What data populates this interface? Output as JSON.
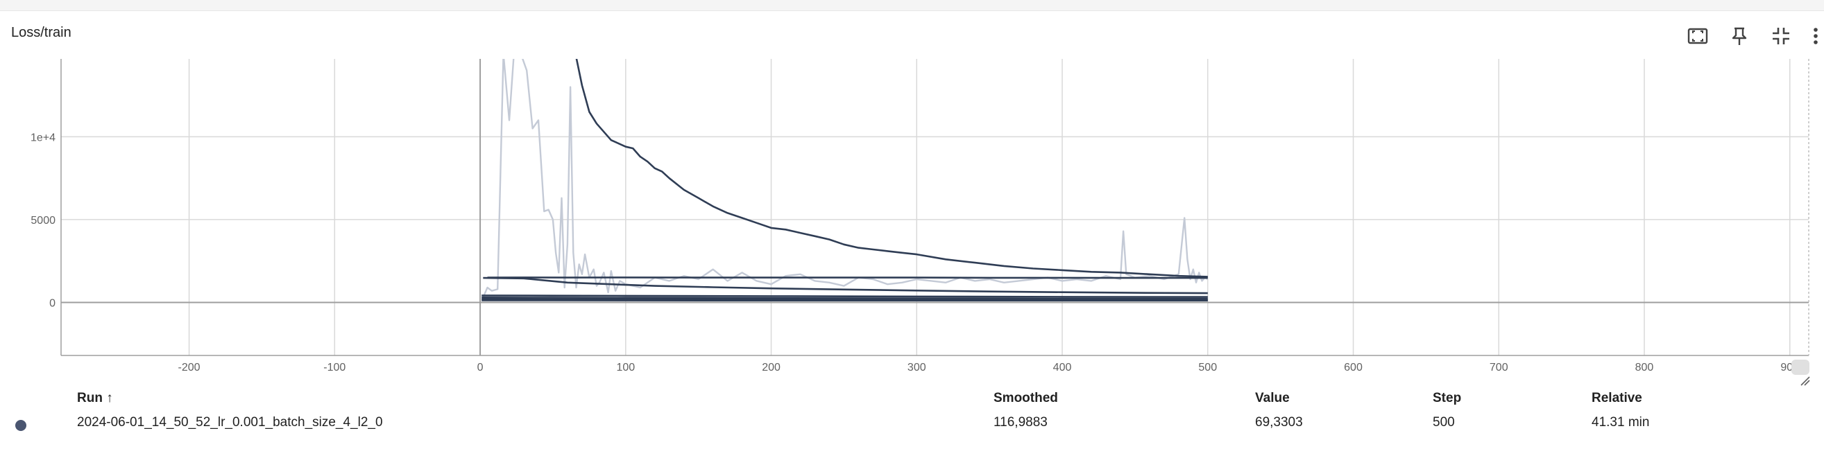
{
  "card": {
    "title": "Loss/train"
  },
  "toolbar": {
    "icons": [
      "fit-domain-icon",
      "pin-icon",
      "collapse-icon",
      "more-vert-icon"
    ]
  },
  "colors": {
    "smoothed": "#2f3d55",
    "raw": "#c4cad6",
    "grid": "#d9d9d9",
    "zero_axis": "#9e9e9e",
    "run_dot": "#4a5570"
  },
  "chart_data": {
    "type": "line",
    "title": "Loss/train",
    "xlabel": "",
    "ylabel": "",
    "xlim": [
      -288,
      913
    ],
    "ylim": [
      -3200,
      14700
    ],
    "x_ticks": [
      -200,
      -100,
      0,
      100,
      200,
      300,
      400,
      500,
      600,
      700,
      800,
      900
    ],
    "x_tick_labels": [
      "-200",
      "-100",
      "0",
      "100",
      "200",
      "300",
      "400",
      "500",
      "600",
      "700",
      "800",
      "900"
    ],
    "y_ticks": [
      0,
      5000,
      10000
    ],
    "y_tick_labels": [
      "0",
      "5000",
      "1e+4"
    ],
    "grid": true,
    "series": [
      {
        "name": "2024-06-01_14_50_52_lr_0.001_batch_size_4_l2_0",
        "kind": "raw",
        "x": [
          2,
          5,
          8,
          12,
          16,
          20,
          24,
          28,
          32,
          36,
          40,
          44,
          47,
          50,
          52,
          54,
          56,
          58,
          60,
          62,
          64,
          66,
          68,
          70,
          72,
          75,
          78,
          80,
          82,
          85,
          88,
          90,
          93,
          96,
          100,
          105,
          110,
          120,
          130,
          140,
          150,
          160,
          170,
          180,
          190,
          200,
          210,
          220,
          230,
          240,
          250,
          260,
          270,
          280,
          290,
          300,
          310,
          320,
          330,
          340,
          350,
          360,
          370,
          380,
          390,
          400,
          410,
          420,
          430,
          440,
          442,
          444,
          450,
          460,
          470,
          480,
          484,
          486,
          488,
          490,
          492,
          494,
          496,
          498,
          500
        ],
        "y": [
          300,
          900,
          700,
          800,
          15000,
          11000,
          16000,
          15000,
          14000,
          10500,
          11000,
          5500,
          5600,
          5000,
          3000,
          1800,
          6300,
          900,
          3500,
          13000,
          3000,
          900,
          2300,
          1700,
          2900,
          1500,
          2000,
          1000,
          1200,
          1800,
          600,
          1900,
          700,
          1300,
          1100,
          1000,
          900,
          1500,
          1300,
          1600,
          1400,
          2000,
          1300,
          1800,
          1300,
          1100,
          1600,
          1700,
          1300,
          1200,
          1000,
          1500,
          1400,
          1100,
          1200,
          1400,
          1300,
          1200,
          1500,
          1300,
          1400,
          1200,
          1300,
          1400,
          1500,
          1300,
          1400,
          1300,
          1600,
          1400,
          4300,
          1700,
          1500,
          1600,
          1400,
          1700,
          5100,
          2600,
          1400,
          2000,
          1200,
          1800,
          1300,
          1500,
          1400
        ]
      },
      {
        "name": "2024-06-01_14_50_52_lr_0.001_batch_size_4_l2_0",
        "kind": "smoothed",
        "x": [
          66,
          70,
          75,
          80,
          85,
          90,
          95,
          100,
          105,
          110,
          115,
          120,
          125,
          130,
          140,
          150,
          160,
          170,
          180,
          190,
          200,
          210,
          220,
          230,
          240,
          250,
          260,
          270,
          280,
          290,
          300,
          320,
          340,
          360,
          380,
          400,
          420,
          440,
          460,
          480,
          500
        ],
        "y": [
          14800,
          13100,
          11500,
          10800,
          10300,
          9800,
          9600,
          9400,
          9300,
          8800,
          8500,
          8100,
          7900,
          7500,
          6800,
          6300,
          5800,
          5400,
          5100,
          4800,
          4500,
          4400,
          4200,
          4000,
          3800,
          3500,
          3300,
          3200,
          3100,
          3000,
          2900,
          2600,
          2400,
          2200,
          2050,
          1950,
          1850,
          1800,
          1700,
          1600,
          1550
        ]
      },
      {
        "name": "2024-06-01_14_50_52_lr_0.001_batch_size_4_l2_0",
        "kind": "smoothed",
        "x": [
          5,
          30,
          60,
          100,
          150,
          200,
          250,
          300,
          350,
          400,
          450,
          500
        ],
        "y": [
          1500,
          1510,
          1500,
          1510,
          1500,
          1500,
          1500,
          1500,
          1490,
          1490,
          1480,
          1480
        ]
      },
      {
        "name": "2024-06-01_14_50_52_lr_0.001_batch_size_4_l2_0",
        "kind": "smoothed",
        "x": [
          2,
          30,
          60,
          90,
          120,
          160,
          200,
          250,
          300,
          350,
          400,
          450,
          500
        ],
        "y": [
          1480,
          1450,
          1200,
          1100,
          1000,
          920,
          850,
          780,
          720,
          660,
          620,
          580,
          560
        ]
      },
      {
        "name": "2024-06-01_14_50_52_lr_0.001_batch_size_4_l2_0",
        "kind": "smoothed",
        "x": [
          1,
          50,
          100,
          200,
          300,
          400,
          500
        ],
        "y": [
          420,
          410,
          400,
          380,
          360,
          340,
          330
        ]
      },
      {
        "name": "2024-06-01_14_50_52_lr_0.001_batch_size_4_l2_0",
        "kind": "smoothed",
        "x": [
          1,
          50,
          100,
          200,
          300,
          400,
          500
        ],
        "y": [
          300,
          290,
          280,
          260,
          240,
          230,
          220
        ]
      },
      {
        "name": "2024-06-01_14_50_52_lr_0.001_batch_size_4_l2_0",
        "kind": "smoothed",
        "x": [
          1,
          50,
          100,
          200,
          300,
          400,
          500
        ],
        "y": [
          200,
          190,
          180,
          170,
          160,
          150,
          140
        ]
      },
      {
        "name": "2024-06-01_14_50_52_lr_0.001_batch_size_4_l2_0",
        "kind": "smoothed",
        "x": [
          1,
          50,
          100,
          200,
          300,
          400,
          500
        ],
        "y": [
          130,
          125,
          120,
          118,
          117,
          117,
          117
        ]
      }
    ]
  },
  "legend": {
    "headers": {
      "run": "Run ↑",
      "smoothed": "Smoothed",
      "value": "Value",
      "step": "Step",
      "relative": "Relative"
    },
    "rows": [
      {
        "run": "2024-06-01_14_50_52_lr_0.001_batch_size_4_l2_0",
        "smoothed": "116,9883",
        "value": "69,3303",
        "step": "500",
        "relative": "41.31 min"
      }
    ]
  }
}
